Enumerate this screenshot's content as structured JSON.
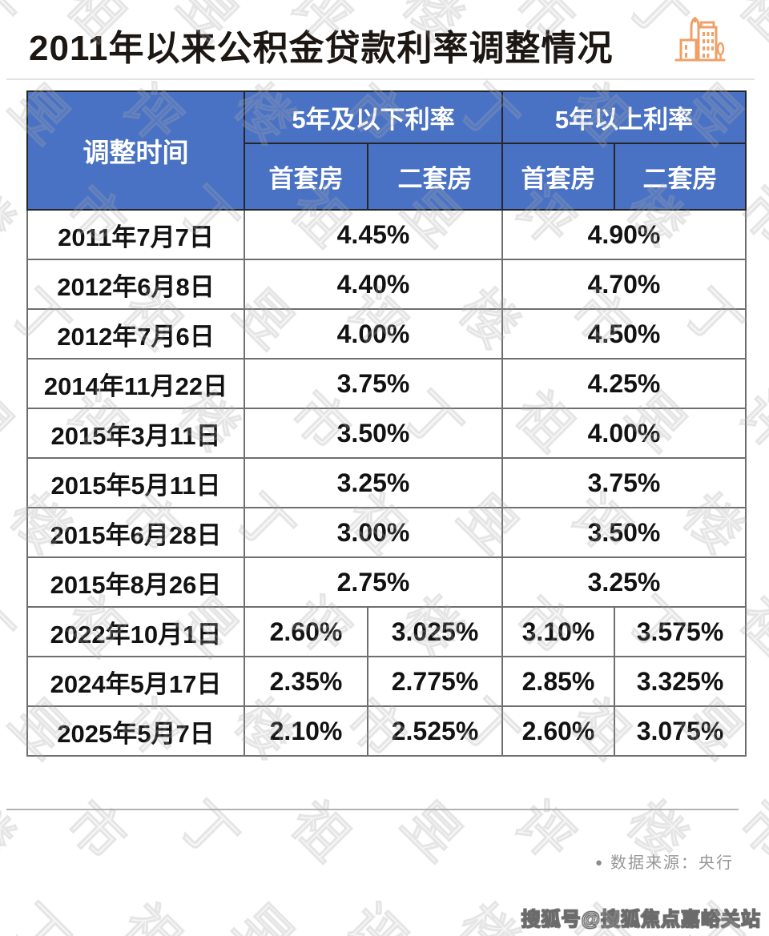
{
  "chart_data": {
    "type": "table",
    "title": "2011年以来公积金贷款利率调整情况",
    "header": {
      "time_col": "调整时间",
      "group_under5": "5年及以下利率",
      "group_over5": "5年以上利率",
      "sub_headers": [
        "首套房",
        "二套房",
        "首套房",
        "二套房"
      ]
    },
    "rows": [
      {
        "date": "2011年7月7日",
        "span": "merged",
        "under5": "4.45%",
        "over5": "4.90%"
      },
      {
        "date": "2012年6月8日",
        "span": "merged",
        "under5": "4.40%",
        "over5": "4.70%"
      },
      {
        "date": "2012年7月6日",
        "span": "merged",
        "under5": "4.00%",
        "over5": "4.50%"
      },
      {
        "date": "2014年11月22日",
        "span": "merged",
        "under5": "3.75%",
        "over5": "4.25%"
      },
      {
        "date": "2015年3月11日",
        "span": "merged",
        "under5": "3.50%",
        "over5": "4.00%"
      },
      {
        "date": "2015年5月11日",
        "span": "merged",
        "under5": "3.25%",
        "over5": "3.75%"
      },
      {
        "date": "2015年6月28日",
        "span": "merged",
        "under5": "3.00%",
        "over5": "3.50%"
      },
      {
        "date": "2015年8月26日",
        "span": "merged",
        "under5": "2.75%",
        "over5": "3.25%"
      },
      {
        "date": "2022年10月1日",
        "span": "split",
        "under5_first": "2.60%",
        "under5_second": "3.025%",
        "over5_first": "3.10%",
        "over5_second": "3.575%"
      },
      {
        "date": "2024年5月17日",
        "span": "split",
        "under5_first": "2.35%",
        "under5_second": "2.775%",
        "over5_first": "2.85%",
        "over5_second": "3.325%"
      },
      {
        "date": "2025年5月7日",
        "span": "split",
        "under5_first": "2.10%",
        "under5_second": "2.525%",
        "over5_first": "2.60%",
        "over5_second": "3.075%"
      }
    ],
    "source": "央行",
    "layout_hints": {
      "header_rows": 2,
      "merged_rows_colspan": 2,
      "grid": "on"
    }
  },
  "footer": {
    "bullet": "●",
    "source_text": "数据来源：央行"
  },
  "watermarks": {
    "bottom_right": "搜狐号@搜狐焦点嘉峪关站",
    "background_text": "丁祖昱评楼市"
  },
  "colors": {
    "header_blue": "#4a72c4",
    "icon_orange": "#f0a067",
    "header_border": "#262626",
    "cell_border": "#6f6f6f",
    "divider_light": "#e2e2e2",
    "divider_dark": "#b3b3b3",
    "source_gray": "#979797",
    "text_dark": "#1c1713"
  }
}
